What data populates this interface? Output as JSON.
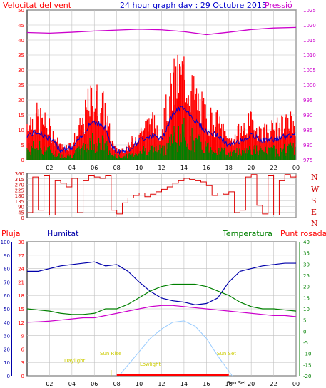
{
  "header": {
    "wind_label": "Velocitat del vent",
    "title": "24 hour graph day : 29 Octubre 2015",
    "pressure_label": "Pressió"
  },
  "colors": {
    "wind_gust": "#ff0000",
    "wind_avg": "#0000cc",
    "wind_low": "#008000",
    "pressure": "#cc00cc",
    "direction": "#dd0000",
    "humidity": "#0000aa",
    "temperature": "#008000",
    "dew_point": "#cc00cc",
    "rain": "#ff0000",
    "solar": "#99ccff",
    "title": "#0000cc",
    "grid": "#c0c0c0"
  },
  "bottom_labels": {
    "rain": "Pluja",
    "humidity": "Humitat",
    "temperature": "Temperatura",
    "dew_point": "Punt rosada",
    "daylight_start": "Daylight",
    "sun_rise": "Sun Rise",
    "lowlight": "Lowlight",
    "sun_set": "Sun Set",
    "sun_set_marker": "Sun Set"
  },
  "compass": [
    "N",
    "W",
    "S",
    "E",
    "N"
  ],
  "chart_data": [
    {
      "type": "line",
      "name": "wind_pressure",
      "x_ticks": [
        "02",
        "04",
        "06",
        "08",
        "10",
        "12",
        "14",
        "16",
        "18",
        "20",
        "22",
        "00"
      ],
      "y_left_ticks": [
        0,
        5,
        10,
        15,
        20,
        25,
        30,
        35,
        40,
        45,
        50
      ],
      "y_right_ticks": [
        975,
        980,
        985,
        990,
        995,
        1000,
        1005,
        1010,
        1015,
        1020,
        1025
      ],
      "ylim_left": [
        0,
        50
      ],
      "ylim_right": [
        975,
        1025
      ],
      "pressure_x": [
        0,
        2,
        4,
        6,
        8,
        10,
        12,
        14,
        16,
        18,
        20,
        22,
        24
      ],
      "pressure_y": [
        1017.5,
        1017.3,
        1017.6,
        1018.0,
        1018.3,
        1018.6,
        1018.4,
        1017.8,
        1016.8,
        1017.6,
        1018.5,
        1019.0,
        1019.2
      ],
      "gust_keys_x": [
        0,
        1,
        2,
        3,
        4,
        5,
        5.5,
        6,
        7,
        7.5,
        8,
        9,
        10,
        11,
        12,
        13,
        14,
        15,
        16,
        17,
        18,
        19,
        20,
        21,
        22,
        23,
        24
      ],
      "gust_keys_y": [
        12,
        14,
        10,
        4,
        5,
        12,
        18,
        20,
        16,
        6,
        3,
        4,
        9,
        12,
        10,
        24,
        28,
        20,
        14,
        12,
        6,
        9,
        12,
        9,
        10,
        11,
        13
      ],
      "grid": true
    },
    {
      "type": "line",
      "name": "wind_direction",
      "y_left_ticks": [
        0,
        45,
        90,
        135,
        180,
        225,
        270,
        315,
        360
      ],
      "ylim": [
        0,
        360
      ],
      "x": [
        0,
        0.5,
        1,
        1.5,
        2,
        2.5,
        3,
        3.5,
        4,
        4.5,
        5,
        5.5,
        6,
        6.5,
        7,
        7.5,
        8,
        8.5,
        9,
        9.5,
        10,
        10.5,
        11,
        11.5,
        12,
        12.5,
        13,
        13.5,
        14,
        14.5,
        15,
        15.5,
        16,
        16.5,
        17,
        17.5,
        18,
        18.5,
        19,
        19.5,
        20,
        20.5,
        21,
        21.5,
        22,
        22.5,
        23,
        23.5,
        24
      ],
      "y": [
        40,
        330,
        60,
        340,
        20,
        300,
        280,
        250,
        320,
        40,
        300,
        340,
        330,
        320,
        340,
        60,
        30,
        120,
        160,
        180,
        200,
        170,
        190,
        210,
        230,
        250,
        280,
        300,
        320,
        310,
        300,
        290,
        260,
        180,
        200,
        190,
        210,
        40,
        60,
        330,
        350,
        100,
        30,
        340,
        20,
        300,
        350,
        330,
        340
      ],
      "grid": true
    },
    {
      "type": "line",
      "name": "humidity_temperature",
      "x_ticks": [
        "02",
        "04",
        "06",
        "08",
        "10",
        "12",
        "14",
        "16",
        "18",
        "20",
        "22",
        "00"
      ],
      "y_humidity_ticks": [
        0,
        10,
        20,
        30,
        40,
        50,
        60,
        70,
        80,
        90,
        100
      ],
      "y_rain_ticks": [
        0,
        3,
        6,
        9,
        12,
        15,
        18,
        21,
        24,
        27,
        30
      ],
      "y_temp_ticks": [
        -20,
        -15,
        -10,
        -5,
        0,
        5,
        10,
        15,
        20,
        25,
        30,
        35,
        40
      ],
      "x": [
        0,
        1,
        2,
        3,
        4,
        5,
        6,
        7,
        8,
        9,
        10,
        11,
        12,
        13,
        14,
        15,
        16,
        17,
        18,
        19,
        20,
        21,
        22,
        23,
        24
      ],
      "series": [
        {
          "name": "Humitat",
          "values": [
            78,
            78,
            80,
            82,
            83,
            84,
            85,
            82,
            83,
            78,
            70,
            63,
            58,
            56,
            55,
            53,
            54,
            58,
            70,
            78,
            80,
            82,
            83,
            84,
            84
          ]
        },
        {
          "name": "Temperatura",
          "values": [
            10,
            9.5,
            9,
            8,
            7.5,
            7.5,
            8,
            10,
            10,
            12,
            15,
            18,
            20,
            21,
            21,
            21,
            20,
            18,
            16,
            13,
            11,
            10,
            10,
            9.5,
            9
          ]
        },
        {
          "name": "Punt rosada",
          "values": [
            4,
            4.2,
            4.5,
            5,
            5.5,
            6,
            6,
            7,
            8,
            9,
            10,
            11,
            11.5,
            11.5,
            11,
            10.5,
            10,
            9.5,
            9,
            8.5,
            8,
            7.5,
            7,
            7,
            6.5
          ]
        }
      ],
      "solar_x": [
        8.2,
        9,
        10,
        11,
        12,
        13,
        14,
        15,
        16,
        17,
        18.3
      ],
      "solar_y": [
        0,
        8,
        18,
        28,
        35,
        40,
        41,
        37,
        28,
        15,
        0
      ],
      "rain_total": 0,
      "grid": true
    }
  ]
}
